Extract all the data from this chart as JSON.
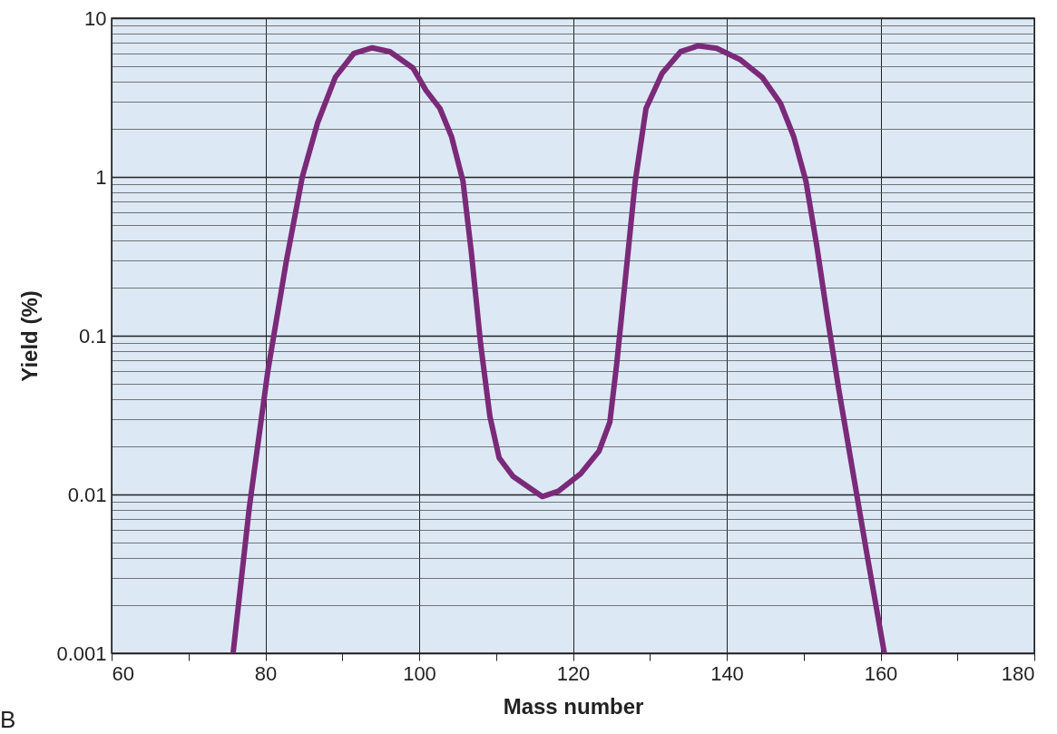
{
  "chart_data": {
    "type": "line",
    "xlabel": "Mass number",
    "ylabel": "Yield (%)",
    "log": true,
    "grid": true,
    "marker": "none",
    "line_style": "solid",
    "xlim": [
      60,
      180
    ],
    "ylim": [
      0.001,
      10
    ],
    "xticks": [
      60,
      {
        "value": 70,
        "label": null
      },
      80,
      {
        "value": 90,
        "label": null
      },
      100,
      {
        "value": 110,
        "label": null
      },
      120,
      {
        "value": 130,
        "label": null
      },
      140,
      {
        "value": 150,
        "label": null
      },
      160,
      {
        "value": 170,
        "label": null
      },
      180
    ],
    "yticks": [
      0.001,
      {
        "value": 0.002,
        "label": null
      },
      {
        "value": 0.003,
        "label": null
      },
      {
        "value": 0.004,
        "label": null
      },
      {
        "value": 0.005,
        "label": null
      },
      {
        "value": 0.006,
        "label": null
      },
      {
        "value": 0.007,
        "label": null
      },
      {
        "value": 0.008,
        "label": null
      },
      {
        "value": 0.009,
        "label": null
      },
      0.01,
      {
        "value": 0.02,
        "label": null
      },
      {
        "value": 0.03,
        "label": null
      },
      {
        "value": 0.04,
        "label": null
      },
      {
        "value": 0.05,
        "label": null
      },
      {
        "value": 0.06,
        "label": null
      },
      {
        "value": 0.07,
        "label": null
      },
      {
        "value": 0.08,
        "label": null
      },
      {
        "value": 0.09,
        "label": null
      },
      0.1,
      {
        "value": 0.2,
        "label": null
      },
      {
        "value": 0.3,
        "label": null
      },
      {
        "value": 0.4,
        "label": null
      },
      {
        "value": 0.5,
        "label": null
      },
      {
        "value": 0.6,
        "label": null
      },
      {
        "value": 0.7,
        "label": null
      },
      {
        "value": 0.8,
        "label": null
      },
      {
        "value": 0.9,
        "label": null
      },
      1,
      {
        "value": 2,
        "label": null
      },
      {
        "value": 3,
        "label": null
      },
      {
        "value": 4,
        "label": null
      },
      {
        "value": 5,
        "label": null
      },
      {
        "value": 6,
        "label": null
      },
      {
        "value": 7,
        "label": null
      },
      {
        "value": 8,
        "label": null
      },
      {
        "value": 9,
        "label": null
      },
      10
    ],
    "annotations": [
      "B"
    ],
    "x": [
      75.8,
      77.9,
      80.3,
      82.7,
      84.8,
      86.8,
      89.1,
      91.5,
      93.9,
      96.2,
      99.2,
      100.9,
      102.7,
      104.2,
      105.7,
      106.8,
      108.0,
      109.2,
      110.4,
      112.2,
      113.9,
      116.0,
      118.1,
      121.0,
      123.4,
      124.8,
      125.7,
      126.9,
      128.1,
      129.5,
      131.6,
      134.0,
      136.3,
      138.7,
      141.7,
      144.6,
      147.0,
      148.7,
      150.3,
      151.7,
      153.1,
      154.6,
      156.4,
      158.2,
      160.5
    ],
    "series": [
      {
        "color": "#7a2a78",
        "values": [
          0.001,
          0.0082,
          0.059,
          0.29,
          1.0,
          2.2,
          4.25,
          6.0,
          6.5,
          6.15,
          4.85,
          3.5,
          2.7,
          1.8,
          0.94,
          0.33,
          0.088,
          0.031,
          0.017,
          0.013,
          0.0114,
          0.0097,
          0.0105,
          0.0135,
          0.0188,
          0.0286,
          0.067,
          0.25,
          0.94,
          2.7,
          4.5,
          6.15,
          6.7,
          6.45,
          5.5,
          4.25,
          2.9,
          1.8,
          0.94,
          0.37,
          0.13,
          0.045,
          0.0139,
          0.0043,
          0.001
        ]
      }
    ]
  }
}
